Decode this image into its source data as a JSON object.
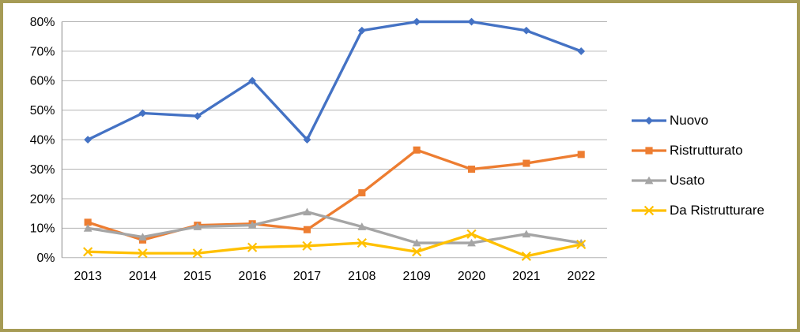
{
  "chart_data": {
    "type": "line",
    "title": "",
    "categories": [
      "2013",
      "2014",
      "2015",
      "2016",
      "2017",
      "2108",
      "2109",
      "2020",
      "2021",
      "2022"
    ],
    "series": [
      {
        "name": "Nuovo",
        "color": "#4472C4",
        "marker": "diamond",
        "values": [
          40,
          49,
          48,
          60,
          40,
          77,
          80,
          80,
          77,
          70
        ]
      },
      {
        "name": "Ristrutturato",
        "color": "#ED7D31",
        "marker": "square",
        "values": [
          12,
          6,
          11,
          11.5,
          9.5,
          22,
          36.5,
          30,
          32,
          35
        ]
      },
      {
        "name": "Usato",
        "color": "#A5A5A5",
        "marker": "triangle",
        "values": [
          10,
          7,
          10.5,
          11,
          15.5,
          10.5,
          5,
          5,
          8,
          5
        ]
      },
      {
        "name": "Da Ristrutturare",
        "color": "#FFC000",
        "marker": "x",
        "values": [
          2,
          1.5,
          1.5,
          3.5,
          4,
          5,
          2,
          8,
          0.5,
          4.5
        ]
      }
    ],
    "y_axis": {
      "min": 0,
      "max": 80,
      "step": 10,
      "tick_labels": [
        "0%",
        "10%",
        "20%",
        "30%",
        "40%",
        "50%",
        "60%",
        "70%",
        "80%"
      ],
      "format": "percent"
    },
    "x_axis": {
      "tick_labels": [
        "2013",
        "2014",
        "2015",
        "2016",
        "2017",
        "2108",
        "2109",
        "2020",
        "2021",
        "2022"
      ]
    },
    "grid": true,
    "legend_position": "right"
  },
  "style": {
    "frame_border_color": "#a69b55",
    "background_color": "#ffffff",
    "gridline_color": "#b3b3b3",
    "axis_line_color": "#9b9b9b",
    "tick_text_color": "#000000",
    "legend_text_color": "#000000"
  }
}
